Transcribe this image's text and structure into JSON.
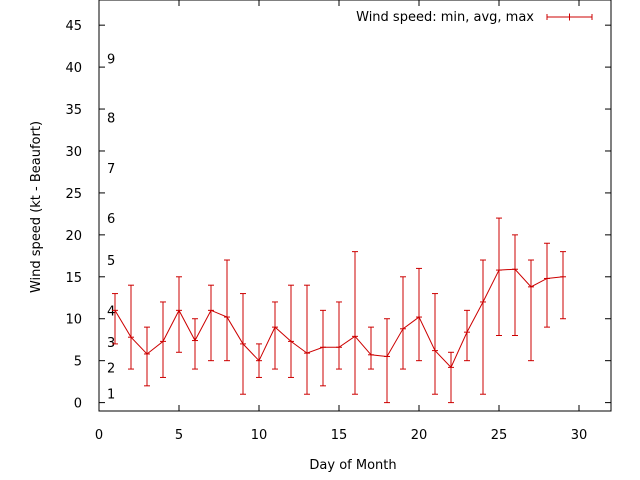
{
  "chart_data": {
    "type": "line",
    "title": "",
    "xlabel": "Day of Month",
    "ylabel": "Wind speed (kt - Beaufort)",
    "xlim": [
      0,
      32
    ],
    "ylim": [
      -1,
      48
    ],
    "grid": false,
    "legend_position": "top-right",
    "x_ticks": [
      0,
      5,
      10,
      15,
      20,
      25,
      30
    ],
    "y_ticks": [
      0,
      5,
      10,
      15,
      20,
      25,
      30,
      35,
      40,
      45
    ],
    "beaufort_labels": [
      {
        "label": "1",
        "y": 1.1
      },
      {
        "label": "2",
        "y": 4.2
      },
      {
        "label": "3",
        "y": 7.2
      },
      {
        "label": "4",
        "y": 11.0
      },
      {
        "label": "5",
        "y": 17.0
      },
      {
        "label": "6",
        "y": 22.0
      },
      {
        "label": "7",
        "y": 28.0
      },
      {
        "label": "8",
        "y": 34.0
      },
      {
        "label": "9",
        "y": 41.0
      }
    ],
    "series": [
      {
        "name": "Wind speed: min, avg, max",
        "color": "#cc0000",
        "x": [
          1,
          2,
          3,
          4,
          5,
          6,
          7,
          8,
          9,
          10,
          11,
          12,
          13,
          14,
          15,
          16,
          17,
          18,
          19,
          20,
          21,
          22,
          23,
          24,
          25,
          26,
          27,
          28,
          29
        ],
        "avg": [
          11.0,
          7.8,
          5.8,
          7.3,
          11.0,
          7.4,
          11.0,
          10.2,
          7.0,
          5.0,
          9.0,
          7.3,
          5.9,
          6.6,
          6.6,
          7.9,
          5.7,
          5.5,
          8.8,
          10.2,
          6.2,
          4.2,
          8.4,
          12.0,
          15.8,
          15.9,
          13.8,
          14.8,
          15.0
        ],
        "min": [
          7,
          4,
          2,
          3,
          6,
          4,
          5,
          5,
          1,
          3,
          4,
          3,
          1,
          2,
          4,
          1,
          4,
          0,
          4,
          5,
          1,
          0,
          5,
          1,
          8,
          8,
          5,
          9,
          10
        ],
        "max": [
          13,
          14,
          9,
          12,
          15,
          10,
          14,
          17,
          13,
          7,
          12,
          14,
          14,
          11,
          12,
          18,
          9,
          10,
          15,
          16,
          13,
          6,
          11,
          17,
          22,
          20,
          17,
          19,
          18
        ]
      }
    ]
  }
}
